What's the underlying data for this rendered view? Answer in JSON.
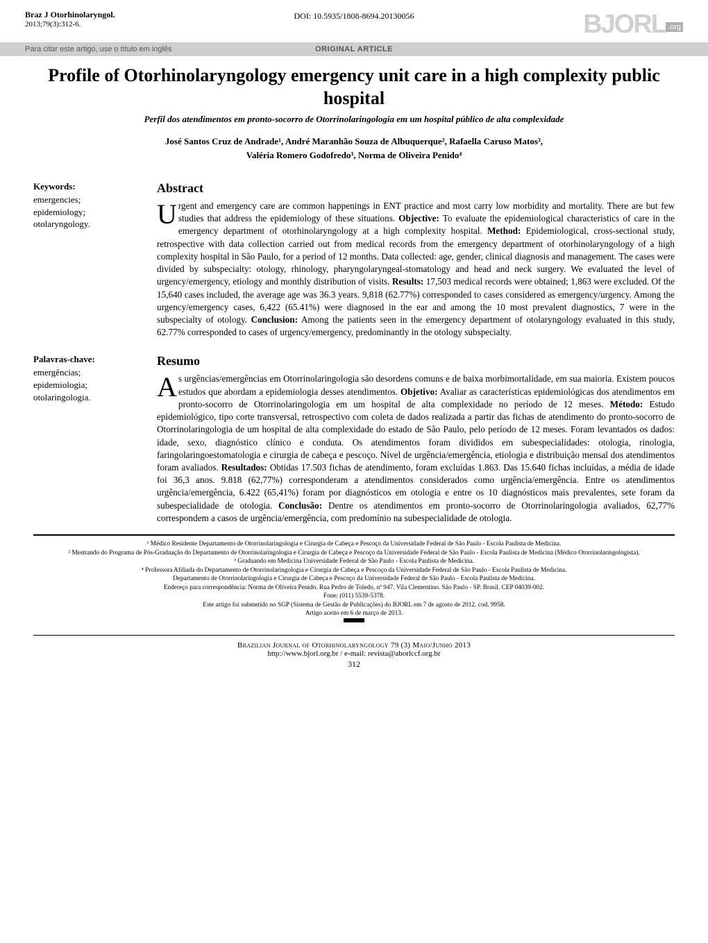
{
  "colors": {
    "text": "#000000",
    "background": "#ffffff",
    "grey_bar": "#cfcfcf",
    "logo_grey": "#d0d0d0",
    "logo_org_bg": "#b0b0b0",
    "muted": "#555555"
  },
  "header": {
    "journal_name": "Braz J Otorhinolaryngol.",
    "journal_issue": "2013;79(3):312-6.",
    "doi": "DOI: 10.5935/1808-8694.20130056",
    "logo_text": "BJORL",
    "logo_suffix": ".org",
    "cite_note": "Para citar este artigo, use o título em inglês",
    "article_type": "ORIGINAL ARTICLE"
  },
  "title": {
    "en": "Profile of Otorhinolaryngology emergency unit care in a high complexity public hospital",
    "pt": "Perfil dos atendimentos em pronto-socorro de Otorrinolaringologia em um hospital público de alta complexidade"
  },
  "authors_line1": "José Santos Cruz de Andrade¹, André Maranhão Souza de Albuquerque², Rafaella Caruso Matos³,",
  "authors_line2": "Valéria Romero Godofredo³, Norma de Oliveira Penido⁴",
  "keywords": {
    "heading": "Keywords:",
    "terms": [
      "emergencies;",
      "epidemiology;",
      "otolaryngology."
    ]
  },
  "abstract": {
    "heading": "Abstract",
    "drop": "U",
    "text": "rgent and emergency care are common happenings in ENT practice and most carry low morbidity and mortality. There are but few studies that address the epidemiology of these situations. Objective: To evaluate the epidemiological characteristics of care in the emergency department of otorhinolaryngology at a high complexity hospital. Method: Epidemiological, cross-sectional study, retrospective with data collection carried out from medical records from the emergency department of otorhinolaryngology of a high complexity hospital in São Paulo, for a period of 12 months. Data collected: age, gender, clinical diagnosis and management. The cases were divided by subspecialty: otology, rhinology, pharyngolaryngeal-stomatology and head and neck surgery. We evaluated the level of urgency/emergency, etiology and monthly distribution of visits. Results: 17,503 medical records were obtained; 1,863 were excluded. Of the 15,640 cases included, the average age was 36.3 years. 9,818 (62.77%) corresponded to cases considered as emergency/urgency. Among the urgency/emergency cases, 6,422 (65.41%) were diagnosed in the ear and among the 10 most prevalent diagnostics, 7 were in the subspecialty of otology. Conclusion: Among the patients seen in the emergency department of otolaryngology evaluated in this study, 62.77% corresponded to cases of urgency/emergency, predominantly in the otology subspecialty.",
    "bold_terms": [
      "Objective:",
      "Method:",
      "Results:",
      "Conclusion:"
    ]
  },
  "palavras": {
    "heading": "Palavras-chave:",
    "terms": [
      "emergências;",
      "epidemiologia;",
      "otolaringologia."
    ]
  },
  "resumo": {
    "heading": "Resumo",
    "drop": "A",
    "text": "s urgências/emergências em Otorrinolaringologia são desordens comuns e de baixa morbimortalidade, em sua maioria. Existem poucos estudos que abordam a epidemiologia desses atendimentos. Objetivo: Avaliar as características epidemiológicas dos atendimentos em pronto-socorro de Otorrinolaringologia em um hospital de alta complexidade no período de 12 meses. Método: Estudo epidemiológico, tipo corte transversal, retrospectivo com coleta de dados realizada a partir das fichas de atendimento do pronto-socorro de Otorrinolaringologia de um hospital de alta complexidade do estado de São Paulo, pelo período de 12 meses. Foram levantados os dados: idade, sexo, diagnóstico clínico e conduta. Os atendimentos foram divididos em subespecialidades: otologia, rinologia, faringolaringoestomatologia e cirurgia de cabeça e pescoço. Nível de urgência/emergência, etiologia e distribuição mensal dos atendimentos foram avaliados. Resultados: Obtidas 17.503 fichas de atendimento, foram excluídas 1.863. Das 15.640 fichas incluídas, a média de idade foi 36,3 anos. 9.818 (62,77%) corresponderam a atendimentos considerados como urgência/emergência. Entre os atendimentos urgência/emergência, 6.422 (65,41%) foram por diagnósticos em otologia e entre os 10 diagnósticos mais prevalentes, sete foram da subespecialidade de otologia. Conclusão: Dentre os atendimentos em pronto-socorro de Otorrinolaringologia avaliados, 62,77% correspondem a casos de urgência/emergência, com predomínio na subespecialidade de otologia.",
    "bold_terms": [
      "Objetivo:",
      "Método:",
      "Resultados:",
      "Conclusão:"
    ]
  },
  "affiliations": [
    "¹ Médico Residente Departamento de Otorrinolaringologia e Cirurgia de Cabeça e Pescoço da Universidade Federal de São Paulo - Escola Paulista de Medicina.",
    "² Mestrando do Programa de Pós-Graduação do Departamento de Otorrinolaringologia e Cirurgia de Cabeça e Pescoço da Universidade Federal de São Paulo - Escola Paulista de Medicina (Médico Otorrinolaringologista).",
    "³ Graduando em Medicina Universidade Federal de São Paulo - Escola Paulista de Medicina.",
    "⁴ Professora Afiliada do Departamento de Otorrinolaringologia e Cirurgia de Cabeça e Pescoço da Universidade Federal de São Paulo - Escola Paulista de Medicina.",
    "Departamento de Otorrinolaringologia e Cirurgia de Cabeça e Pescoço da Universidade Federal de São Paulo - Escola Paulista de Medicina.",
    "Endereço para correspondência: Norma de Oliveira Penido. Rua Pedro de Toledo, nº 947. Vila Clementino. São Paulo - SP. Brasil. CEP 04039-002.",
    "Fone: (011) 5539-5378.",
    "Este artigo foi submetido no SGP (Sistema de Gestão de Publicações) do BJORL em 7 de agosto de 2012. cod. 9958.",
    "Artigo aceito em 6 de março de 2013."
  ],
  "footer": {
    "journal_line": "Brazilian Journal of Otorhinolaryngology 79 (3) Maio/Junho 2013",
    "contact_line": "http://www.bjorl.org.br  /  e-mail: revista@aborlccf.org.br",
    "page": "312"
  }
}
